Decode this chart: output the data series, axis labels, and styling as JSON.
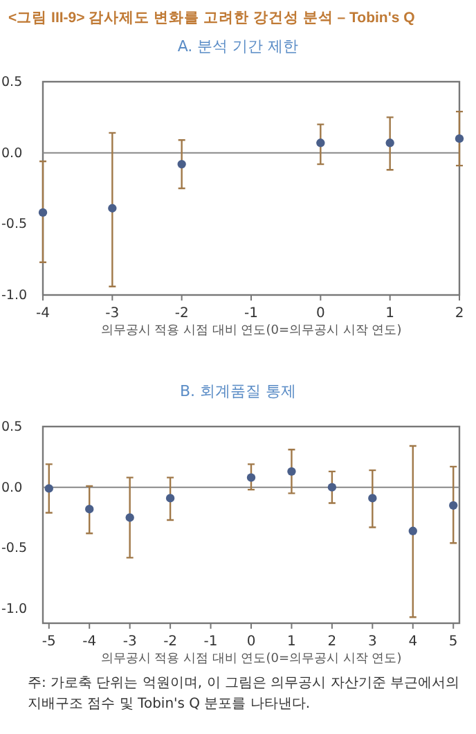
{
  "chart_data": [
    {
      "type": "scatter",
      "title": "<그림 III-9> 감사제도 변화를 고려한 강건성 분석 – Tobin's Q",
      "subtitle": "A. 분석 기간 제한",
      "xlabel": "의무공시 적용 시점 대비 연도(0=의무공시 시작 연도)",
      "x": [
        -4,
        -3,
        -2,
        0,
        1,
        2
      ],
      "xlim": [
        -4,
        2
      ],
      "xticks": [
        -4,
        -3,
        -2,
        -1,
        0,
        1,
        2
      ],
      "ylim": [
        -1.0,
        0.5
      ],
      "yticks": [
        {
          "value": -1.0,
          "label": "-1.0"
        },
        {
          "value": -0.5,
          "label": "-0.5"
        },
        {
          "value": 0,
          "label": "0.0"
        },
        {
          "value": 0.5,
          "label": "0.5"
        }
      ],
      "marker": "circle",
      "grid": false,
      "series": [
        {
          "color": "#4a5f8a",
          "values": [
            -0.42,
            -0.39,
            -0.08,
            0.07,
            0.07,
            0.1
          ],
          "errors": [
            [
              -0.77,
              -0.06
            ],
            [
              -0.94,
              0.14
            ],
            [
              -0.25,
              0.09
            ],
            [
              -0.08,
              0.2
            ],
            [
              -0.12,
              0.25
            ],
            [
              -0.09,
              0.29
            ]
          ]
        }
      ],
      "ref_lines": [
        {
          "axis": "y",
          "value": 0,
          "color": "#888888"
        }
      ]
    },
    {
      "type": "scatter",
      "subtitle": "B. 회계품질 통제",
      "xlabel": "의무공시 적용 시점 대비 연도(0=의무공시 시작 연도)",
      "x": [
        -5,
        -4,
        -3,
        -2,
        0,
        1,
        2,
        3,
        4,
        5
      ],
      "xlim": [
        -5.15,
        5.15
      ],
      "xticks": [
        -5,
        -4,
        -3,
        -2,
        -1,
        0,
        1,
        2,
        3,
        4,
        5
      ],
      "ylim": [
        -1.12,
        0.5
      ],
      "yticks": [
        {
          "value": -1.0,
          "label": "-1.0"
        },
        {
          "value": -0.5,
          "label": "-0.5"
        },
        {
          "value": 0,
          "label": "0.0"
        },
        {
          "value": 0.5,
          "label": "0.5"
        }
      ],
      "marker": "circle",
      "grid": false,
      "series": [
        {
          "color": "#4a5f8a",
          "values": [
            -0.01,
            -0.18,
            -0.25,
            -0.09,
            0.08,
            0.13,
            0.0,
            -0.09,
            -0.36,
            -0.15
          ],
          "errors": [
            [
              -0.21,
              0.19
            ],
            [
              -0.38,
              0.01
            ],
            [
              -0.58,
              0.08
            ],
            [
              -0.27,
              0.08
            ],
            [
              -0.02,
              0.19
            ],
            [
              -0.05,
              0.31
            ],
            [
              -0.13,
              0.13
            ],
            [
              -0.33,
              0.14
            ],
            [
              -1.07,
              0.34
            ],
            [
              -0.46,
              0.17
            ]
          ]
        }
      ],
      "ref_lines": [
        {
          "axis": "y",
          "value": 0,
          "color": "#888888"
        }
      ],
      "annotations": [
        "주: 가로축 단위는 억원이며, 이 그림은 의무공시 자산기준 부근에서의 지배구조 점수 및 Tobin's Q 분포를 나타낸다."
      ]
    }
  ]
}
